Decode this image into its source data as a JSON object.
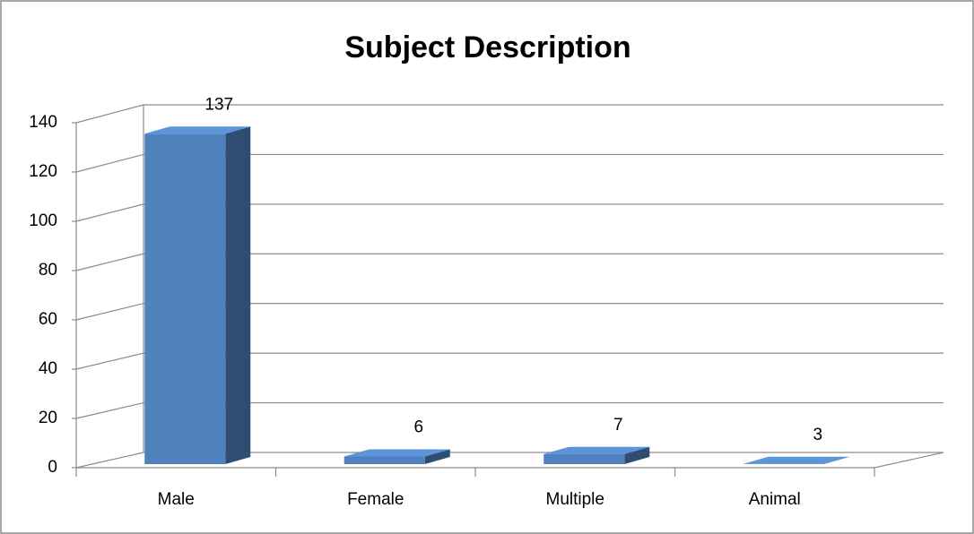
{
  "chart_data": {
    "type": "bar3d",
    "title": "Subject Description",
    "categories": [
      "Male",
      "Female",
      "Multiple",
      "Animal"
    ],
    "values": [
      137,
      6,
      7,
      3
    ],
    "color": "#4f81bd",
    "ylim": [
      0,
      140
    ],
    "yticks": [
      0,
      20,
      40,
      60,
      80,
      100,
      120,
      140
    ],
    "grid": true
  }
}
